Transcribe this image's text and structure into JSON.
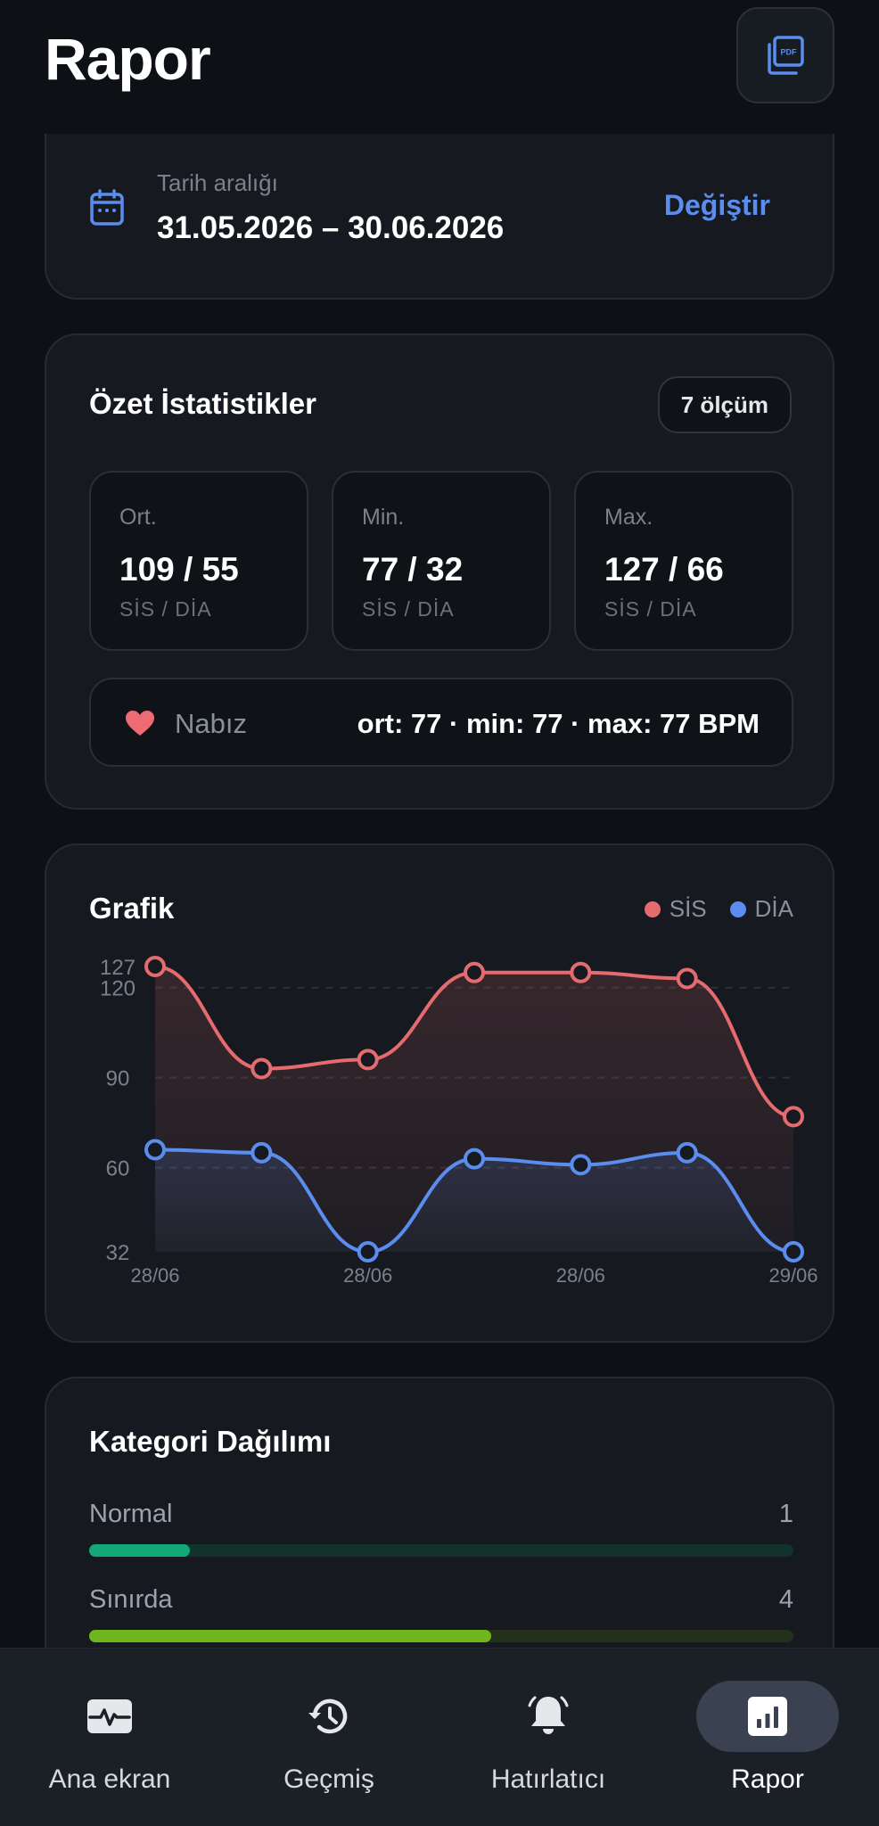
{
  "header": {
    "title": "Rapor",
    "pdf_icon": "pdf-export-icon"
  },
  "date_range": {
    "label": "Tarih aralığı",
    "value": "31.05.2026  –  30.06.2026",
    "change_label": "Değiştir",
    "icon": "calendar-icon"
  },
  "summary": {
    "title": "Özet İstatistikler",
    "count_badge": "7 ölçüm",
    "stats": [
      {
        "label": "Ort.",
        "value": "109 / 55",
        "unit": "SİS / DİA"
      },
      {
        "label": "Min.",
        "value": "77 / 32",
        "unit": "SİS / DİA"
      },
      {
        "label": "Max.",
        "value": "127 / 66",
        "unit": "SİS / DİA"
      }
    ],
    "pulse": {
      "label": "Nabız",
      "value": "ort: 77 · min: 77 · max: 77 BPM",
      "icon": "heart-icon"
    }
  },
  "chart": {
    "title": "Grafik",
    "legend": [
      {
        "name": "SİS",
        "color": "#e56b6f"
      },
      {
        "name": "DİA",
        "color": "#5b8def"
      }
    ]
  },
  "chart_data": {
    "type": "line",
    "x_tick_labels": [
      "28/06",
      "28/06",
      "28/06",
      "29/06"
    ],
    "x_tick_positions": [
      0,
      2,
      4,
      6
    ],
    "y_ticks": [
      32,
      60,
      90,
      120,
      127
    ],
    "ylim": [
      32,
      127
    ],
    "grid": true,
    "legend_position": "top-right",
    "series": [
      {
        "name": "SİS",
        "color": "#e56b6f",
        "values": [
          127,
          93,
          96,
          125,
          125,
          123,
          77
        ]
      },
      {
        "name": "DİA",
        "color": "#5b8def",
        "values": [
          66,
          65,
          32,
          63,
          61,
          65,
          32
        ]
      }
    ]
  },
  "categories": {
    "title": "Kategori Dağılımı",
    "items": [
      {
        "name": "Normal",
        "count": "1",
        "fraction": 0.142857,
        "color": "#12a878",
        "track": "#12332c"
      },
      {
        "name": "Sınırda",
        "count": "4",
        "fraction": 0.571429,
        "color": "#71b51c",
        "track": "#22301c"
      }
    ]
  },
  "nav": {
    "items": [
      {
        "label": "Ana ekran",
        "icon": "heart-monitor-icon",
        "active": false
      },
      {
        "label": "Geçmiş",
        "icon": "history-icon",
        "active": false
      },
      {
        "label": "Hatırlatıcı",
        "icon": "bell-icon",
        "active": false
      },
      {
        "label": "Rapor",
        "icon": "bar-chart-icon",
        "active": true
      }
    ]
  }
}
